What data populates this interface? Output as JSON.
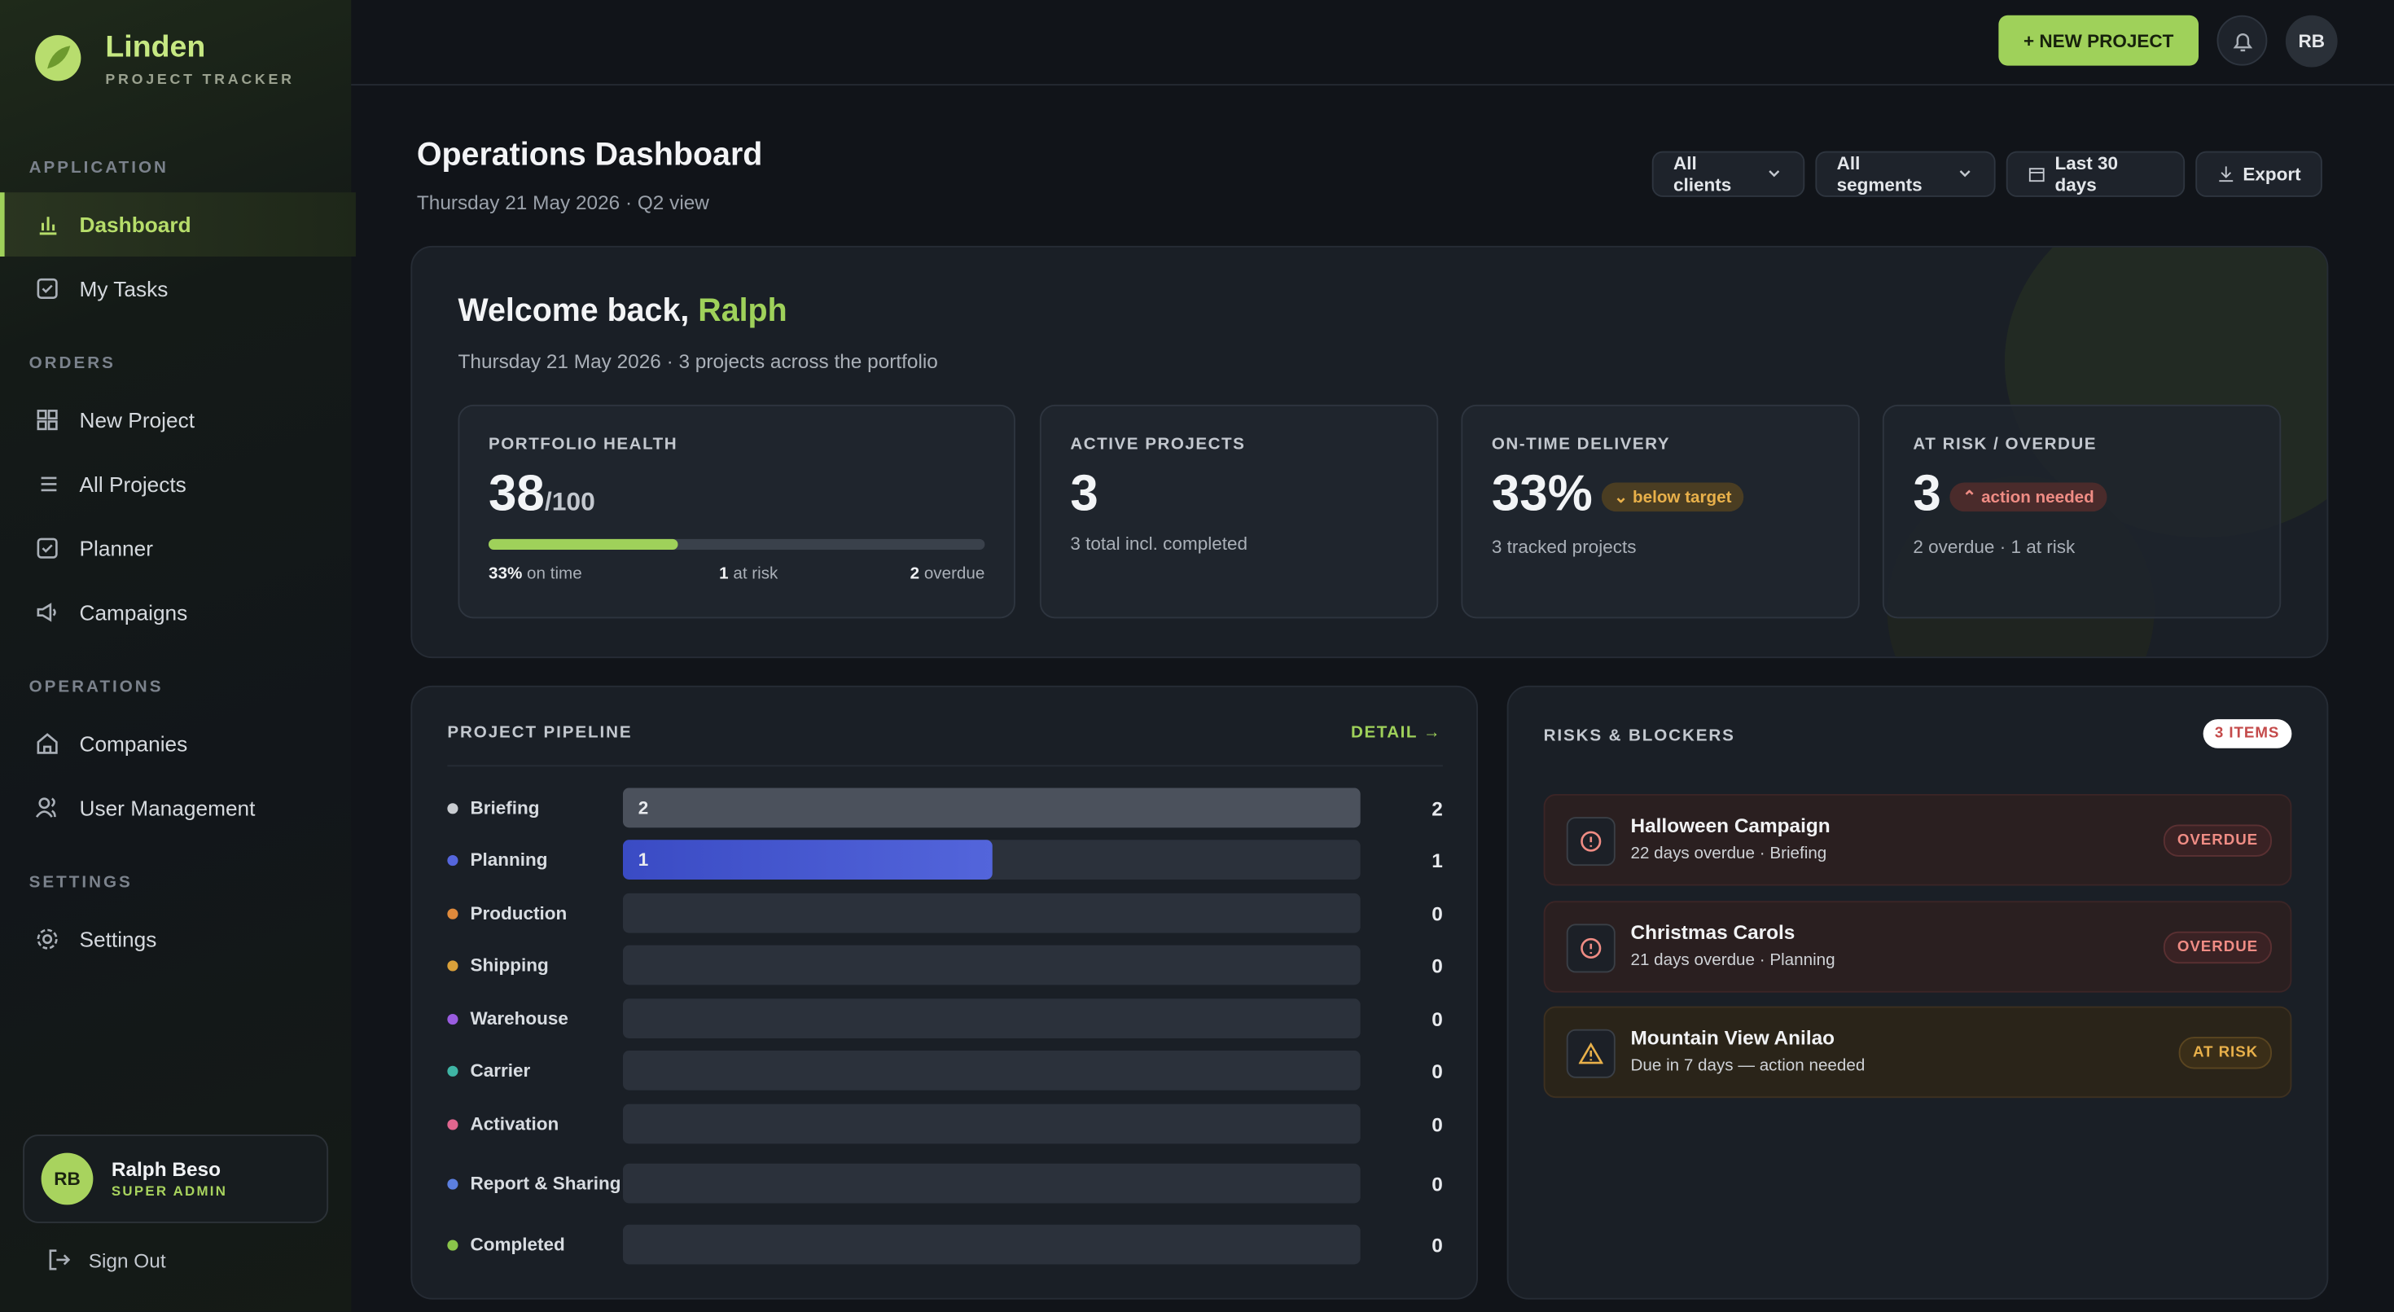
{
  "brand": {
    "name": "Linden",
    "tagline": "PROJECT TRACKER"
  },
  "sidebar": {
    "sections": [
      {
        "title": "APPLICATION",
        "items": [
          "Dashboard",
          "My Tasks"
        ]
      },
      {
        "title": "ORDERS",
        "items": [
          "New Project",
          "All Projects",
          "Planner",
          "Campaigns"
        ]
      },
      {
        "title": "OPERATIONS",
        "items": [
          "Companies",
          "User Management"
        ]
      },
      {
        "title": "SETTINGS",
        "items": [
          "Settings"
        ]
      }
    ],
    "user": {
      "initials": "RB",
      "name": "Ralph Beso",
      "role": "SUPER ADMIN"
    },
    "sign_out": "Sign Out"
  },
  "topbar": {
    "new_project": "+ NEW PROJECT",
    "avatar": "RB"
  },
  "header": {
    "title": "Operations Dashboard",
    "subtitle": "Thursday 21 May 2026 · Q2 view",
    "filters": [
      "All clients",
      "All segments",
      "Last 30 days",
      "Export"
    ]
  },
  "welcome": {
    "greeting": "Welcome back,",
    "name": "Ralph",
    "subtitle": "Thursday 21 May 2026 · 3 projects across the portfolio"
  },
  "kpis": {
    "health": {
      "label": "PORTFOLIO HEALTH",
      "score": 38,
      "max": {
        "value": 100,
        "label": "/100"
      },
      "on_time": {
        "value": "33%",
        "text": "on time"
      },
      "at_risk": {
        "value": "1",
        "text": "at risk"
      },
      "overdue": {
        "value": "2",
        "text": "overdue"
      }
    },
    "active": {
      "label": "ACTIVE PROJECTS",
      "value": "3",
      "note": "3 total incl. completed"
    },
    "on_time": {
      "label": "ON-TIME DELIVERY",
      "value": "33%",
      "badge": "below target",
      "note": "3 tracked projects"
    },
    "risk": {
      "label": "AT RISK / OVERDUE",
      "value": "3",
      "badge": "action needed",
      "note": "2 overdue · 1 at risk"
    }
  },
  "pipeline": {
    "title": "PROJECT PIPELINE",
    "link": "DETAIL →",
    "xlim": [
      0,
      2
    ],
    "stages": [
      {
        "name": "Briefing",
        "color": "#c9ccd1",
        "value": 2
      },
      {
        "name": "Planning",
        "color": "#5566dd",
        "value": 1
      },
      {
        "name": "Production",
        "color": "#e08a3c",
        "value": 0
      },
      {
        "name": "Shipping",
        "color": "#d9a03a",
        "value": 0
      },
      {
        "name": "Warehouse",
        "color": "#9a5ce0",
        "value": 0
      },
      {
        "name": "Carrier",
        "color": "#3fb5a5",
        "value": 0
      },
      {
        "name": "Activation",
        "color": "#e0668f",
        "value": 0
      },
      {
        "name": "Report & Sharing",
        "color": "#5b7fe0",
        "value": 0
      },
      {
        "name": "Completed",
        "color": "#8ac44a",
        "value": 0
      }
    ]
  },
  "risks": {
    "title": "RISKS & BLOCKERS",
    "count": "3 ITEMS",
    "items": [
      {
        "title": "Halloween Campaign",
        "detail": "22 days overdue · Briefing",
        "status": "OVERDUE"
      },
      {
        "title": "Christmas Carols",
        "detail": "21 days overdue · Planning",
        "status": "OVERDUE"
      },
      {
        "title": "Mountain View Anilao",
        "detail": "Due in 7 days — action needed",
        "status": "AT RISK"
      }
    ]
  }
}
